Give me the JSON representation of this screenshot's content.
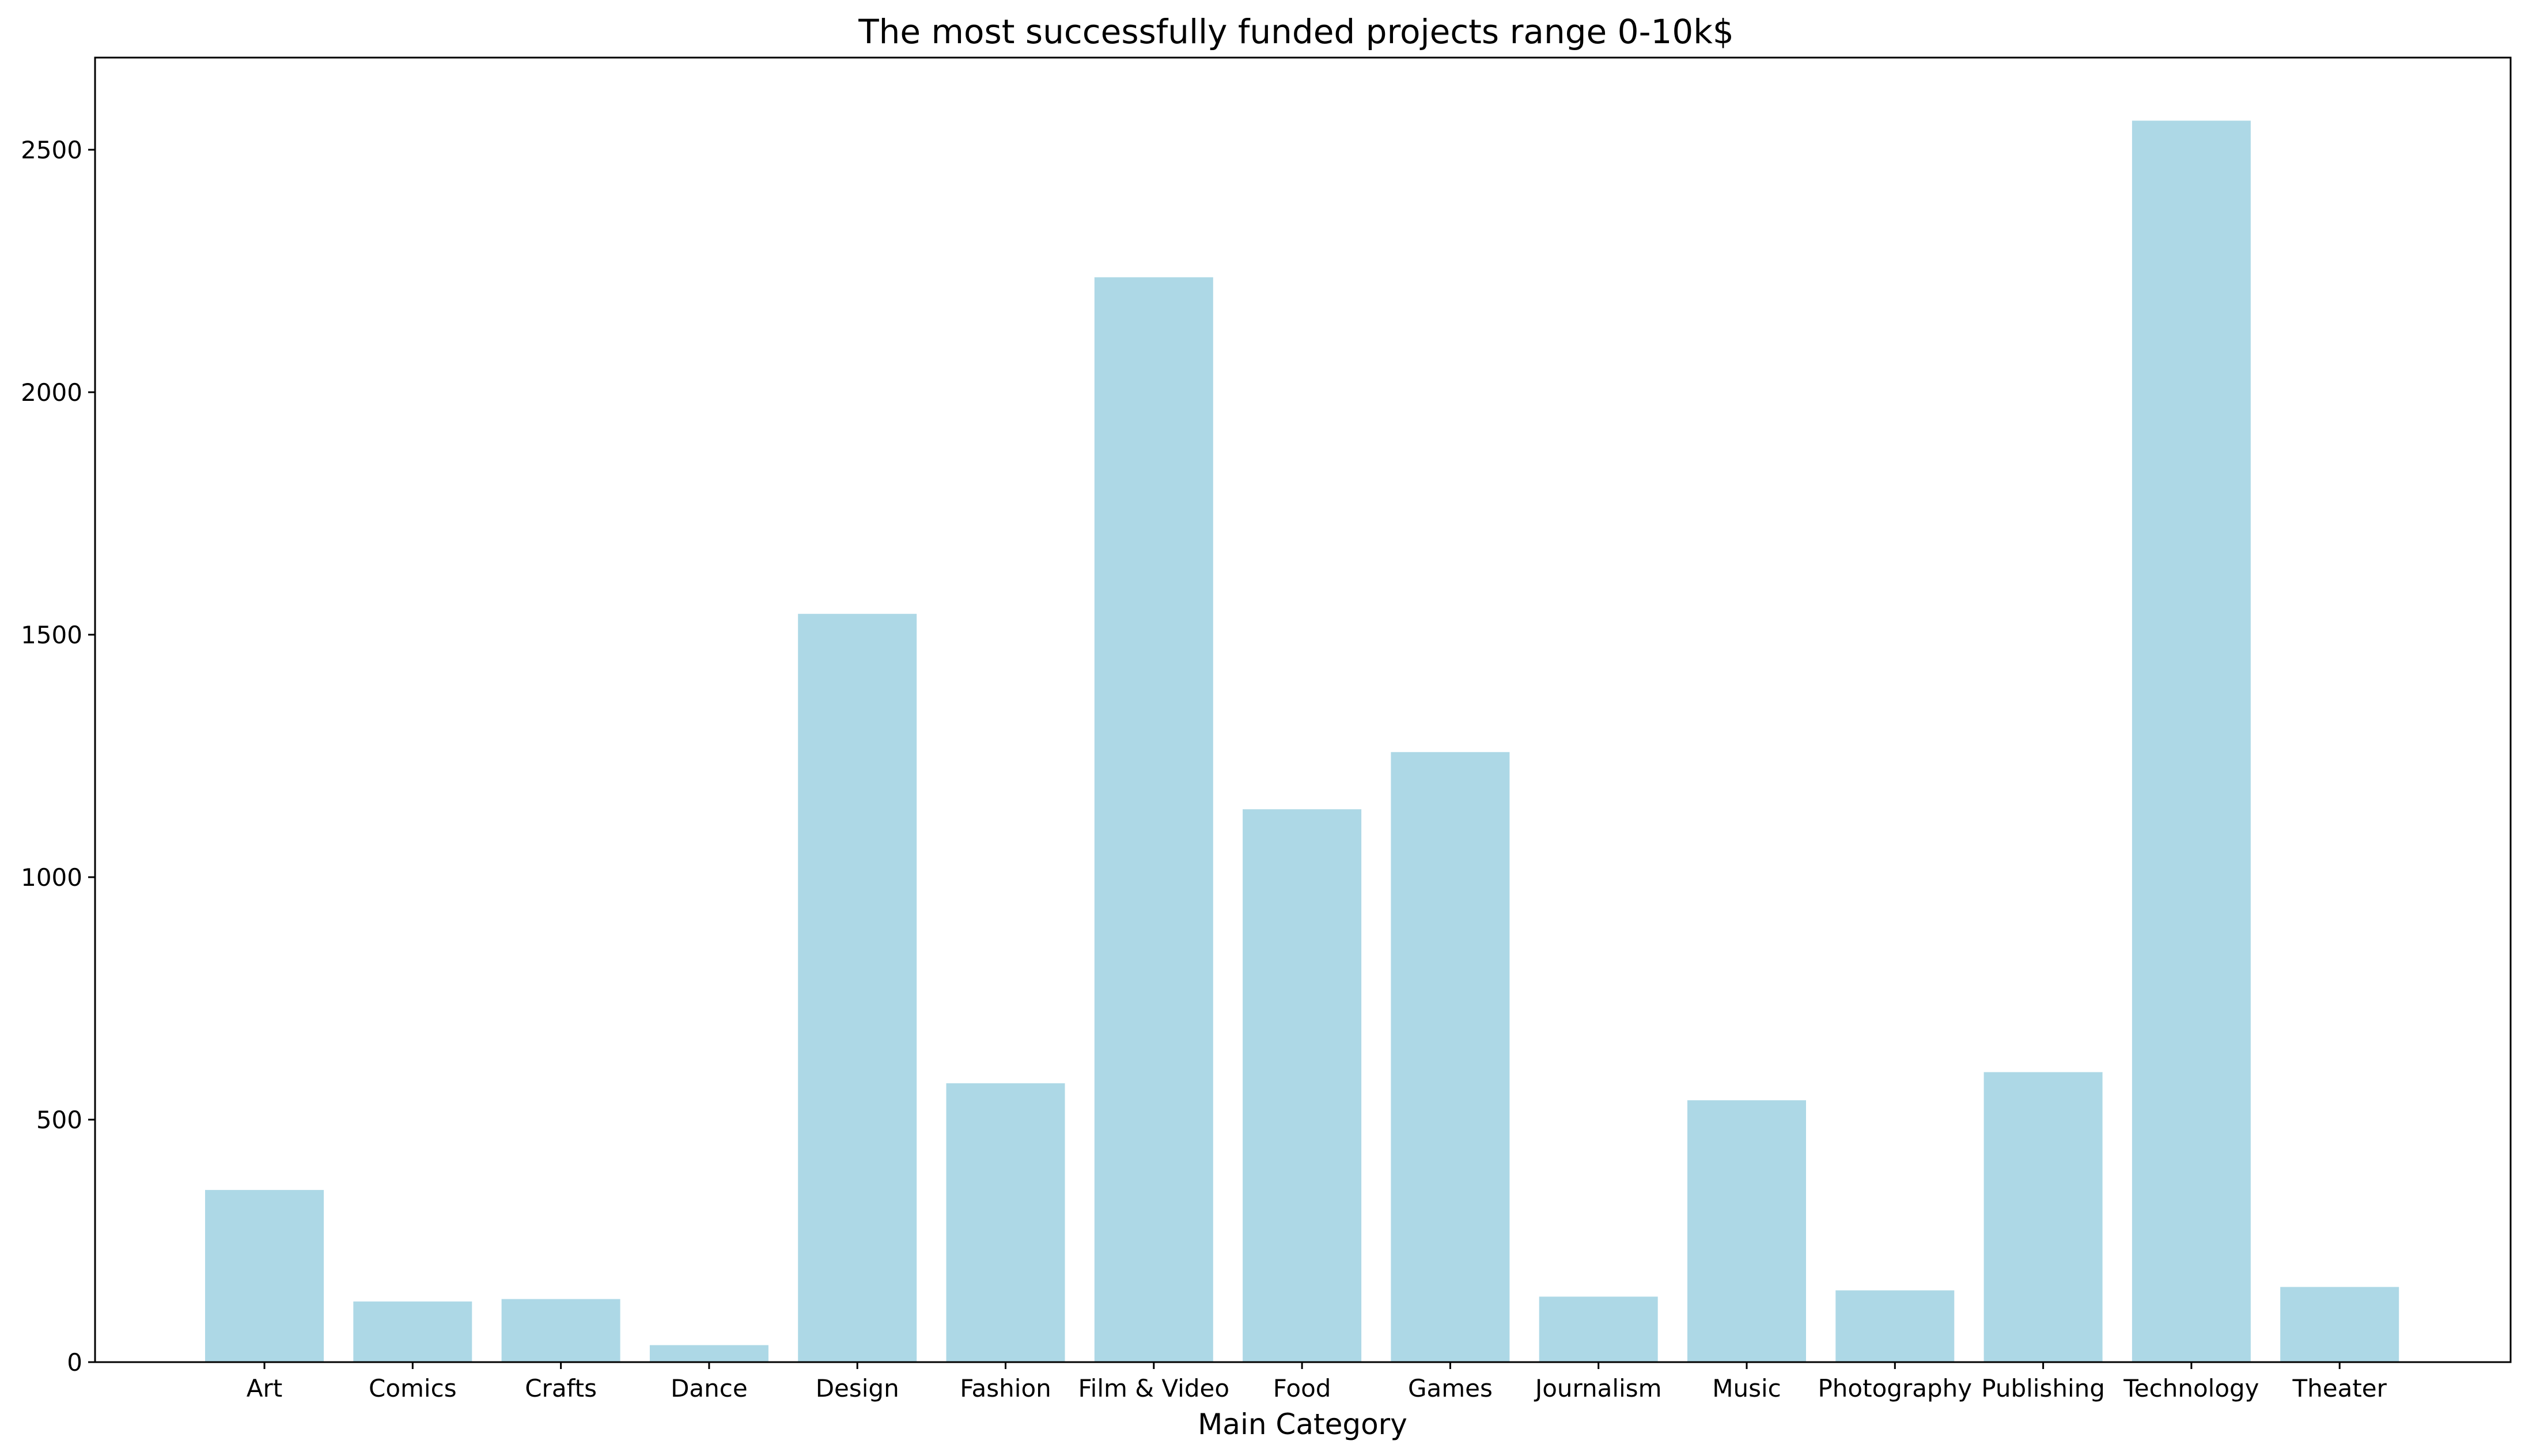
{
  "chart_data": {
    "type": "bar",
    "title": "The most successfully funded projects range 0-10k$",
    "xlabel": "Main Category",
    "ylabel": "",
    "categories": [
      "Art",
      "Comics",
      "Crafts",
      "Dance",
      "Design",
      "Fashion",
      "Film & Video",
      "Food",
      "Games",
      "Journalism",
      "Music",
      "Photography",
      "Publishing",
      "Technology",
      "Theater"
    ],
    "values": [
      355,
      125,
      130,
      35,
      1543,
      575,
      2237,
      1140,
      1258,
      135,
      540,
      148,
      598,
      2560,
      155
    ],
    "ylim": [
      0,
      2690
    ],
    "yticks": [
      0,
      500,
      1000,
      1500,
      2000,
      2500
    ],
    "grid": false,
    "legend": "none",
    "bar_color": "#add8e6"
  }
}
